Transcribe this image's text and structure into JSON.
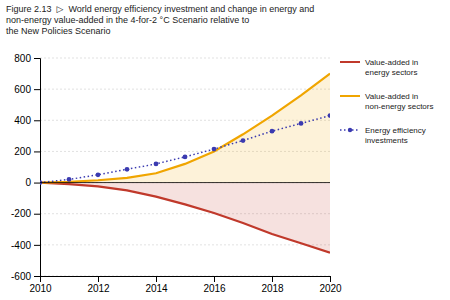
{
  "chart_data": {
    "type": "line",
    "title": "Figure 2.13  ▷  World energy efficiency investment and change in energy and\nnon-energy value-added in the 4-for-2 °C Scenario relative to\nthe New Policies Scenario",
    "x": [
      2010,
      2011,
      2012,
      2013,
      2014,
      2015,
      2016,
      2017,
      2018,
      2019,
      2020
    ],
    "xlim": [
      2010,
      2020
    ],
    "xticks": [
      2010,
      2012,
      2014,
      2016,
      2018,
      2020
    ],
    "ylim": [
      -600,
      800
    ],
    "yticks": [
      -600,
      -400,
      -200,
      0,
      200,
      400,
      600,
      800
    ],
    "grid": true,
    "legend": "right",
    "series": [
      {
        "name": "Value-added in\nenergy sectors",
        "type": "area",
        "color": "#c0392b",
        "values": [
          0,
          -10,
          -25,
          -50,
          -90,
          -140,
          -195,
          -260,
          -330,
          -390,
          -450
        ]
      },
      {
        "name": "Value-added in\nnon-energy sectors",
        "type": "area",
        "color": "#f0a500",
        "values": [
          0,
          5,
          15,
          30,
          60,
          120,
          200,
          310,
          430,
          560,
          700
        ]
      },
      {
        "name": "Energy efficiency\ninvestments",
        "type": "line",
        "color": "#3a3ab0",
        "line_style": "dotted",
        "marker": "circle",
        "values": [
          0,
          20,
          50,
          85,
          120,
          165,
          215,
          270,
          330,
          380,
          430
        ]
      }
    ]
  }
}
